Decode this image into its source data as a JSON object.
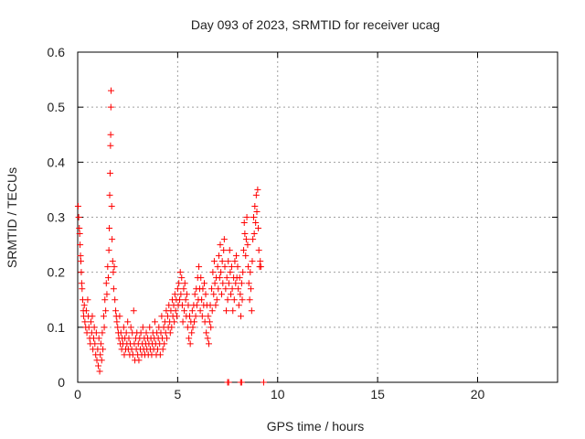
{
  "chart_data": {
    "type": "scatter",
    "title": "Day 093 of 2023, SRMTID for receiver ucag",
    "xlabel": "GPS time / hours",
    "ylabel": "SRMTID / TECUs",
    "xlim": [
      0,
      24
    ],
    "ylim": [
      0,
      0.6
    ],
    "xticks": [
      0,
      5,
      10,
      15,
      20
    ],
    "yticks": [
      0,
      0.1,
      0.2,
      0.3,
      0.4,
      0.5,
      0.6
    ],
    "xtick_labels": [
      "0",
      "5",
      "10",
      "15",
      "20"
    ],
    "ytick_labels": [
      "0",
      "0.1",
      "0.2",
      "0.3",
      "0.4",
      "0.5",
      "0.6"
    ],
    "grid": true,
    "marker": "+",
    "color": "#ff0000",
    "series": [
      {
        "name": "SRMTID",
        "points": [
          [
            0.02,
            0.32
          ],
          [
            0.05,
            0.3
          ],
          [
            0.08,
            0.28
          ],
          [
            0.1,
            0.27
          ],
          [
            0.12,
            0.25
          ],
          [
            0.14,
            0.23
          ],
          [
            0.16,
            0.22
          ],
          [
            0.18,
            0.2
          ],
          [
            0.2,
            0.18
          ],
          [
            0.22,
            0.17
          ],
          [
            0.25,
            0.15
          ],
          [
            0.28,
            0.13
          ],
          [
            0.3,
            0.12
          ],
          [
            0.33,
            0.14
          ],
          [
            0.36,
            0.11
          ],
          [
            0.4,
            0.1
          ],
          [
            0.43,
            0.13
          ],
          [
            0.46,
            0.09
          ],
          [
            0.5,
            0.15
          ],
          [
            0.53,
            0.12
          ],
          [
            0.56,
            0.1
          ],
          [
            0.6,
            0.08
          ],
          [
            0.63,
            0.07
          ],
          [
            0.66,
            0.11
          ],
          [
            0.7,
            0.09
          ],
          [
            0.73,
            0.12
          ],
          [
            0.76,
            0.06
          ],
          [
            0.8,
            0.08
          ],
          [
            0.83,
            0.1
          ],
          [
            0.86,
            0.07
          ],
          [
            0.9,
            0.05
          ],
          [
            0.93,
            0.09
          ],
          [
            0.96,
            0.04
          ],
          [
            1.0,
            0.06
          ],
          [
            1.03,
            0.03
          ],
          [
            1.06,
            0.08
          ],
          [
            1.1,
            0.02
          ],
          [
            1.13,
            0.05
          ],
          [
            1.16,
            0.07
          ],
          [
            1.2,
            0.04
          ],
          [
            1.23,
            0.09
          ],
          [
            1.26,
            0.06
          ],
          [
            1.3,
            0.12
          ],
          [
            1.33,
            0.1
          ],
          [
            1.36,
            0.15
          ],
          [
            1.4,
            0.13
          ],
          [
            1.43,
            0.18
          ],
          [
            1.46,
            0.16
          ],
          [
            1.5,
            0.21
          ],
          [
            1.53,
            0.19
          ],
          [
            1.56,
            0.24
          ],
          [
            1.58,
            0.28
          ],
          [
            1.6,
            0.34
          ],
          [
            1.62,
            0.38
          ],
          [
            1.64,
            0.43
          ],
          [
            1.65,
            0.45
          ],
          [
            1.66,
            0.5
          ],
          [
            1.67,
            0.53
          ],
          [
            1.7,
            0.32
          ],
          [
            1.72,
            0.26
          ],
          [
            1.75,
            0.22
          ],
          [
            1.78,
            0.2
          ],
          [
            1.8,
            0.17
          ],
          [
            1.83,
            0.21
          ],
          [
            1.86,
            0.15
          ],
          [
            1.9,
            0.13
          ],
          [
            1.93,
            0.12
          ],
          [
            1.96,
            0.11
          ],
          [
            2.0,
            0.1
          ],
          [
            2.03,
            0.09
          ],
          [
            2.06,
            0.08
          ],
          [
            2.1,
            0.12
          ],
          [
            2.13,
            0.07
          ],
          [
            2.16,
            0.09
          ],
          [
            2.2,
            0.06
          ],
          [
            2.23,
            0.08
          ],
          [
            2.26,
            0.07
          ],
          [
            2.3,
            0.1
          ],
          [
            2.33,
            0.05
          ],
          [
            2.36,
            0.08
          ],
          [
            2.4,
            0.06
          ],
          [
            2.43,
            0.09
          ],
          [
            2.46,
            0.07
          ],
          [
            2.5,
            0.11
          ],
          [
            2.53,
            0.06
          ],
          [
            2.56,
            0.08
          ],
          [
            2.6,
            0.05
          ],
          [
            2.63,
            0.07
          ],
          [
            2.66,
            0.1
          ],
          [
            2.7,
            0.06
          ],
          [
            2.73,
            0.09
          ],
          [
            2.76,
            0.05
          ],
          [
            2.8,
            0.13
          ],
          [
            2.83,
            0.07
          ],
          [
            2.86,
            0.04
          ],
          [
            2.9,
            0.08
          ],
          [
            2.93,
            0.06
          ],
          [
            2.96,
            0.09
          ],
          [
            3.0,
            0.05
          ],
          [
            3.03,
            0.07
          ],
          [
            3.06,
            0.04
          ],
          [
            3.1,
            0.08
          ],
          [
            3.13,
            0.06
          ],
          [
            3.16,
            0.09
          ],
          [
            3.2,
            0.05
          ],
          [
            3.23,
            0.07
          ],
          [
            3.26,
            0.1
          ],
          [
            3.3,
            0.06
          ],
          [
            3.33,
            0.08
          ],
          [
            3.36,
            0.05
          ],
          [
            3.4,
            0.07
          ],
          [
            3.43,
            0.09
          ],
          [
            3.46,
            0.06
          ],
          [
            3.5,
            0.08
          ],
          [
            3.53,
            0.05
          ],
          [
            3.56,
            0.07
          ],
          [
            3.6,
            0.1
          ],
          [
            3.63,
            0.06
          ],
          [
            3.66,
            0.08
          ],
          [
            3.7,
            0.05
          ],
          [
            3.73,
            0.07
          ],
          [
            3.76,
            0.09
          ],
          [
            3.8,
            0.06
          ],
          [
            3.83,
            0.08
          ],
          [
            3.86,
            0.11
          ],
          [
            3.9,
            0.07
          ],
          [
            3.93,
            0.05
          ],
          [
            3.96,
            0.09
          ],
          [
            4.0,
            0.06
          ],
          [
            4.03,
            0.08
          ],
          [
            4.06,
            0.1
          ],
          [
            4.1,
            0.07
          ],
          [
            4.13,
            0.05
          ],
          [
            4.16,
            0.09
          ],
          [
            4.2,
            0.12
          ],
          [
            4.23,
            0.08
          ],
          [
            4.26,
            0.06
          ],
          [
            4.3,
            0.1
          ],
          [
            4.33,
            0.07
          ],
          [
            4.36,
            0.11
          ],
          [
            4.4,
            0.09
          ],
          [
            4.43,
            0.13
          ],
          [
            4.46,
            0.08
          ],
          [
            4.5,
            0.12
          ],
          [
            4.53,
            0.1
          ],
          [
            4.56,
            0.14
          ],
          [
            4.6,
            0.11
          ],
          [
            4.63,
            0.09
          ],
          [
            4.66,
            0.13
          ],
          [
            4.7,
            0.1
          ],
          [
            4.73,
            0.15
          ],
          [
            4.76,
            0.12
          ],
          [
            4.8,
            0.14
          ],
          [
            4.83,
            0.11
          ],
          [
            4.86,
            0.16
          ],
          [
            4.9,
            0.13
          ],
          [
            4.93,
            0.15
          ],
          [
            4.96,
            0.12
          ],
          [
            5.0,
            0.17
          ],
          [
            5.03,
            0.14
          ],
          [
            5.06,
            0.18
          ],
          [
            5.1,
            0.15
          ],
          [
            5.13,
            0.2
          ],
          [
            5.16,
            0.16
          ],
          [
            5.2,
            0.19
          ],
          [
            5.23,
            0.14
          ],
          [
            5.26,
            0.11
          ],
          [
            5.3,
            0.17
          ],
          [
            5.33,
            0.13
          ],
          [
            5.36,
            0.18
          ],
          [
            5.4,
            0.15
          ],
          [
            5.43,
            0.12
          ],
          [
            5.46,
            0.16
          ],
          [
            5.5,
            0.1
          ],
          [
            5.53,
            0.14
          ],
          [
            5.56,
            0.08
          ],
          [
            5.6,
            0.12
          ],
          [
            5.63,
            0.07
          ],
          [
            5.66,
            0.11
          ],
          [
            5.7,
            0.09
          ],
          [
            5.73,
            0.13
          ],
          [
            5.76,
            0.1
          ],
          [
            5.8,
            0.14
          ],
          [
            5.83,
            0.11
          ],
          [
            5.86,
            0.16
          ],
          [
            5.9,
            0.12
          ],
          [
            5.93,
            0.17
          ],
          [
            5.96,
            0.14
          ],
          [
            6.0,
            0.19
          ],
          [
            6.03,
            0.15
          ],
          [
            6.06,
            0.21
          ],
          [
            6.1,
            0.17
          ],
          [
            6.13,
            0.13
          ],
          [
            6.16,
            0.19
          ],
          [
            6.2,
            0.15
          ],
          [
            6.23,
            0.12
          ],
          [
            6.26,
            0.17
          ],
          [
            6.3,
            0.14
          ],
          [
            6.33,
            0.18
          ],
          [
            6.36,
            0.11
          ],
          [
            6.4,
            0.16
          ],
          [
            6.43,
            0.09
          ],
          [
            6.46,
            0.14
          ],
          [
            6.5,
            0.08
          ],
          [
            6.53,
            0.12
          ],
          [
            6.56,
            0.07
          ],
          [
            6.6,
            0.11
          ],
          [
            6.63,
            0.14
          ],
          [
            6.66,
            0.1
          ],
          [
            6.7,
            0.17
          ],
          [
            6.73,
            0.13
          ],
          [
            6.76,
            0.2
          ],
          [
            6.8,
            0.16
          ],
          [
            6.83,
            0.22
          ],
          [
            6.86,
            0.18
          ],
          [
            6.9,
            0.14
          ],
          [
            6.93,
            0.19
          ],
          [
            6.96,
            0.15
          ],
          [
            7.0,
            0.21
          ],
          [
            7.03,
            0.17
          ],
          [
            7.06,
            0.23
          ],
          [
            7.1,
            0.19
          ],
          [
            7.13,
            0.25
          ],
          [
            7.16,
            0.2
          ],
          [
            7.2,
            0.16
          ],
          [
            7.23,
            0.22
          ],
          [
            7.26,
            0.18
          ],
          [
            7.3,
            0.24
          ],
          [
            7.33,
            0.26
          ],
          [
            7.36,
            0.21
          ],
          [
            7.4,
            0.17
          ],
          [
            7.43,
            0.13
          ],
          [
            7.46,
            0.19
          ],
          [
            7.5,
            0.15
          ],
          [
            7.53,
            0.22
          ],
          [
            7.56,
            0.18
          ],
          [
            7.6,
            0.24
          ],
          [
            7.63,
            0.2
          ],
          [
            7.66,
            0.16
          ],
          [
            7.7,
            0.21
          ],
          [
            7.73,
            0.17
          ],
          [
            7.76,
            0.13
          ],
          [
            7.8,
            0.19
          ],
          [
            7.83,
            0.15
          ],
          [
            7.86,
            0.22
          ],
          [
            7.9,
            0.18
          ],
          [
            7.93,
            0.23
          ],
          [
            7.96,
            0.19
          ],
          [
            8.0,
            0.21
          ],
          [
            8.03,
            0.17
          ],
          [
            8.06,
            0.14
          ],
          [
            8.1,
            0.19
          ],
          [
            8.13,
            0.16
          ],
          [
            8.16,
            0.12
          ],
          [
            8.2,
            0.18
          ],
          [
            8.23,
            0.15
          ],
          [
            8.26,
            0.2
          ],
          [
            8.3,
            0.24
          ],
          [
            8.33,
            0.29
          ],
          [
            8.36,
            0.27
          ],
          [
            8.4,
            0.23
          ],
          [
            8.43,
            0.26
          ],
          [
            8.46,
            0.3
          ],
          [
            8.5,
            0.25
          ],
          [
            8.53,
            0.21
          ],
          [
            8.56,
            0.18
          ],
          [
            8.6,
            0.15
          ],
          [
            8.63,
            0.2
          ],
          [
            8.66,
            0.17
          ],
          [
            8.7,
            0.13
          ],
          [
            8.73,
            0.22
          ],
          [
            8.76,
            0.26
          ],
          [
            8.8,
            0.3
          ],
          [
            8.83,
            0.27
          ],
          [
            8.86,
            0.32
          ],
          [
            8.9,
            0.29
          ],
          [
            8.93,
            0.34
          ],
          [
            8.96,
            0.31
          ],
          [
            9.0,
            0.35
          ],
          [
            9.03,
            0.28
          ],
          [
            9.06,
            0.24
          ],
          [
            9.1,
            0.21
          ],
          [
            9.13,
            0.22
          ],
          [
            9.16,
            0.21
          ],
          [
            7.5,
            0.0
          ],
          [
            7.55,
            0.0
          ],
          [
            8.15,
            0.0
          ],
          [
            8.2,
            0.0
          ],
          [
            9.3,
            0.0
          ]
        ]
      }
    ]
  }
}
